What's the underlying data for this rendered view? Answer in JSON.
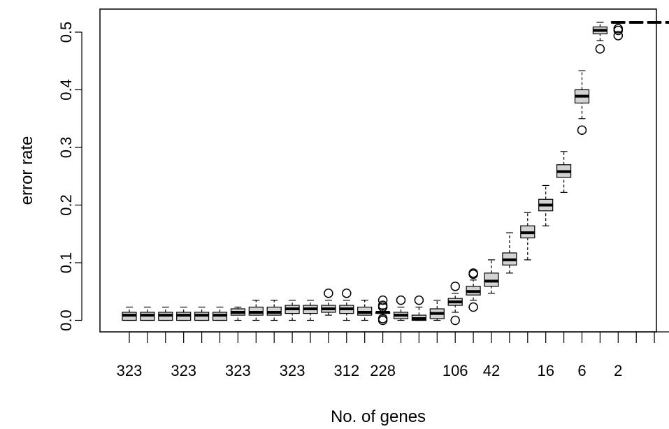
{
  "chart_data": {
    "type": "box",
    "xlabel": "No. of genes",
    "ylabel": "error rate",
    "ylim": [
      -0.02,
      0.54
    ],
    "yticks": [
      "0.0",
      "0.1",
      "0.2",
      "0.3",
      "0.4",
      "0.5"
    ],
    "x_tick_labels": [
      "323",
      "323",
      "323",
      "323",
      "312",
      "228",
      "106",
      "42",
      "16",
      "6",
      "2"
    ],
    "box_fill": "#d3d3d3",
    "boxes": [
      {
        "lo": 0.0,
        "q1": 0.0,
        "med": 0.009,
        "q3": 0.014,
        "hi": 0.023,
        "out": []
      },
      {
        "lo": 0.0,
        "q1": 0.0,
        "med": 0.009,
        "q3": 0.014,
        "hi": 0.023,
        "out": []
      },
      {
        "lo": 0.0,
        "q1": 0.0,
        "med": 0.009,
        "q3": 0.014,
        "hi": 0.023,
        "out": []
      },
      {
        "lo": 0.0,
        "q1": 0.0,
        "med": 0.009,
        "q3": 0.014,
        "hi": 0.023,
        "out": []
      },
      {
        "lo": 0.0,
        "q1": 0.0,
        "med": 0.009,
        "q3": 0.014,
        "hi": 0.023,
        "out": []
      },
      {
        "lo": 0.0,
        "q1": 0.0,
        "med": 0.009,
        "q3": 0.014,
        "hi": 0.023,
        "out": []
      },
      {
        "lo": 0.0,
        "q1": 0.009,
        "med": 0.014,
        "q3": 0.02,
        "hi": 0.023,
        "out": []
      },
      {
        "lo": 0.0,
        "q1": 0.009,
        "med": 0.014,
        "q3": 0.023,
        "hi": 0.035,
        "out": []
      },
      {
        "lo": 0.0,
        "q1": 0.009,
        "med": 0.014,
        "q3": 0.023,
        "hi": 0.035,
        "out": []
      },
      {
        "lo": 0.0,
        "q1": 0.012,
        "med": 0.02,
        "q3": 0.026,
        "hi": 0.035,
        "out": []
      },
      {
        "lo": 0.0,
        "q1": 0.012,
        "med": 0.02,
        "q3": 0.026,
        "hi": 0.035,
        "out": []
      },
      {
        "lo": 0.009,
        "q1": 0.014,
        "med": 0.02,
        "q3": 0.026,
        "hi": 0.035,
        "out": [
          0.047
        ]
      },
      {
        "lo": 0.0,
        "q1": 0.012,
        "med": 0.02,
        "q3": 0.026,
        "hi": 0.035,
        "out": [
          0.047
        ]
      },
      {
        "lo": 0.0,
        "q1": 0.009,
        "med": 0.014,
        "q3": 0.023,
        "hi": 0.035,
        "out": []
      },
      {
        "lo": 0.009,
        "q1": 0.012,
        "med": 0.014,
        "q3": 0.014,
        "hi": 0.02,
        "out": [
          0.035,
          0.026,
          0.023,
          0.003,
          0.0
        ]
      },
      {
        "lo": 0.0,
        "q1": 0.003,
        "med": 0.009,
        "q3": 0.014,
        "hi": 0.023,
        "out": [
          0.035
        ]
      },
      {
        "lo": 0.0,
        "q1": 0.0,
        "med": 0.003,
        "q3": 0.009,
        "hi": 0.023,
        "out": [
          0.035
        ]
      },
      {
        "lo": 0.0,
        "q1": 0.003,
        "med": 0.012,
        "q3": 0.02,
        "hi": 0.035,
        "out": []
      },
      {
        "lo": 0.014,
        "q1": 0.026,
        "med": 0.032,
        "q3": 0.038,
        "hi": 0.047,
        "out": [
          0.059,
          0.0
        ]
      },
      {
        "lo": 0.035,
        "q1": 0.044,
        "med": 0.05,
        "q3": 0.059,
        "hi": 0.07,
        "out": [
          0.082,
          0.08,
          0.023
        ]
      },
      {
        "lo": 0.047,
        "q1": 0.059,
        "med": 0.068,
        "q3": 0.082,
        "hi": 0.105,
        "out": []
      },
      {
        "lo": 0.082,
        "q1": 0.096,
        "med": 0.105,
        "q3": 0.117,
        "hi": 0.152,
        "out": []
      },
      {
        "lo": 0.105,
        "q1": 0.143,
        "med": 0.152,
        "q3": 0.164,
        "hi": 0.187,
        "out": []
      },
      {
        "lo": 0.164,
        "q1": 0.19,
        "med": 0.2,
        "q3": 0.21,
        "hi": 0.234,
        "out": []
      },
      {
        "lo": 0.222,
        "q1": 0.248,
        "med": 0.258,
        "q3": 0.27,
        "hi": 0.293,
        "out": []
      },
      {
        "lo": 0.35,
        "q1": 0.377,
        "med": 0.389,
        "q3": 0.4,
        "hi": 0.433,
        "out": [
          0.33
        ]
      },
      {
        "lo": 0.485,
        "q1": 0.497,
        "med": 0.503,
        "q3": 0.509,
        "hi": 0.517,
        "out": [
          0.471
        ]
      },
      {
        "lo": 0.517,
        "q1": 0.517,
        "med": 0.517,
        "q3": 0.517,
        "hi": 0.517,
        "out": [
          0.506,
          0.503,
          0.494
        ]
      },
      {
        "lo": 0.517,
        "q1": 0.517,
        "med": 0.517,
        "q3": 0.517,
        "hi": 0.517,
        "out": []
      },
      {
        "lo": 0.517,
        "q1": 0.517,
        "med": 0.517,
        "q3": 0.517,
        "hi": 0.517,
        "out": []
      },
      {
        "lo": 0.517,
        "q1": 0.517,
        "med": 0.517,
        "q3": 0.517,
        "hi": 0.517,
        "out": []
      }
    ]
  }
}
